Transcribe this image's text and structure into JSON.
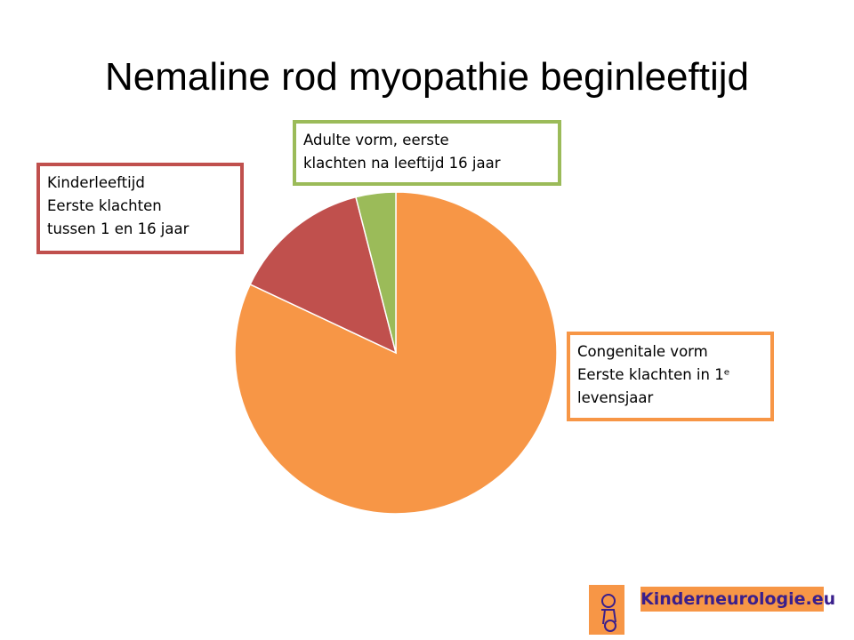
{
  "chart_data": {
    "type": "pie",
    "title": "Nemaline rod myopathie beginleeftijd",
    "categories": [
      "Congenitale vorm\nEerste klachten in 1ᵉ\nlevensjaar",
      "Kinderleeftijd\nEerste klachten\ntussen 1 en 16 jaar",
      "Adulte vorm, eerste\nklachten na leeftijd 16 jaar"
    ],
    "values": [
      82,
      14,
      4
    ],
    "colors": [
      "#f79646",
      "#c0504d",
      "#9bbb59"
    ]
  },
  "footer": {
    "logo_text": "Kinderneurologie.eu"
  }
}
